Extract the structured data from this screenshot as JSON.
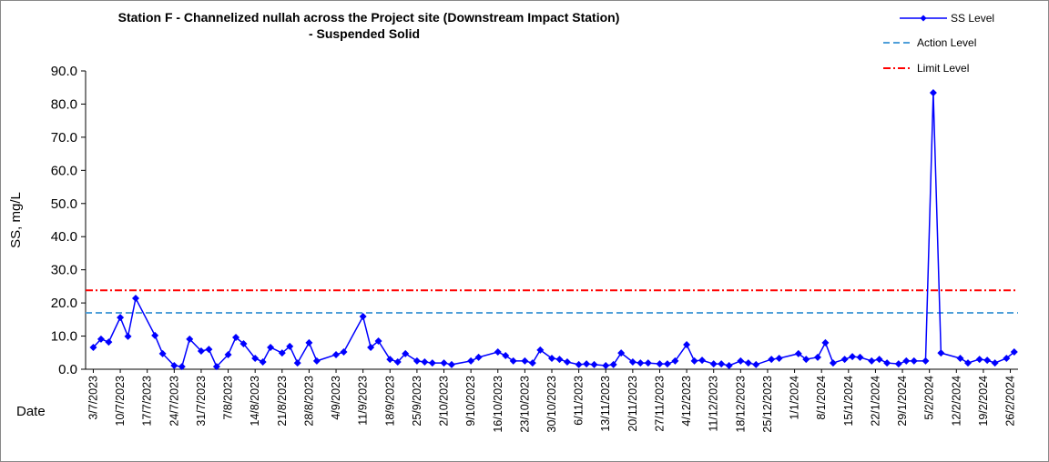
{
  "chart_data": {
    "type": "line",
    "title": [
      "Station F - Channelized nullah across the Project site (Downstream Impact Station)",
      "- Suspended Solid"
    ],
    "y_label": "SS, mg/L",
    "x_label": "Date",
    "x": [
      "3/7/2023",
      "5/7/2023",
      "7/7/2023",
      "10/7/2023",
      "12/7/2023",
      "14/7/2023",
      "19/7/2023",
      "21/7/2023",
      "24/7/2023",
      "26/7/2023",
      "28/7/2023",
      "31/7/2023",
      "2/8/2023",
      "4/8/2023",
      "7/8/2023",
      "9/8/2023",
      "11/8/2023",
      "14/8/2023",
      "16/8/2023",
      "18/8/2023",
      "21/8/2023",
      "23/8/2023",
      "25/8/2023",
      "28/8/2023",
      "30/8/2023",
      "4/9/2023",
      "6/9/2023",
      "11/9/2023",
      "13/9/2023",
      "15/9/2023",
      "18/9/2023",
      "20/9/2023",
      "22/9/2023",
      "25/9/2023",
      "27/9/2023",
      "29/9/2023",
      "2/10/2023",
      "4/10/2023",
      "9/10/2023",
      "11/10/2023",
      "16/10/2023",
      "18/10/2023",
      "20/10/2023",
      "23/10/2023",
      "25/10/2023",
      "27/10/2023",
      "30/10/2023",
      "1/11/2023",
      "3/11/2023",
      "6/11/2023",
      "8/11/2023",
      "10/11/2023",
      "13/11/2023",
      "15/11/2023",
      "17/11/2023",
      "20/11/2023",
      "22/11/2023",
      "24/11/2023",
      "27/11/2023",
      "29/11/2023",
      "1/12/2023",
      "4/12/2023",
      "6/12/2023",
      "8/12/2023",
      "11/12/2023",
      "13/12/2023",
      "15/12/2023",
      "18/12/2023",
      "20/12/2023",
      "22/12/2023",
      "26/12/2023",
      "28/12/2023",
      "2/1/2024",
      "4/1/2024",
      "7/1/2024",
      "9/1/2024",
      "11/1/2024",
      "14/1/2024",
      "16/1/2024",
      "18/1/2024",
      "21/1/2024",
      "23/1/2024",
      "25/1/2024",
      "28/1/2024",
      "30/1/2024",
      "1/2/2024",
      "4/2/2024",
      "6/2/2024",
      "8/2/2024",
      "13/2/2024",
      "15/2/2024",
      "18/2/2024",
      "20/2/2024",
      "22/2/2024",
      "25/2/2024",
      "27/2/2024"
    ],
    "series": [
      {
        "name": "SS Level",
        "color": "#0000ff",
        "marker": "diamond",
        "values": [
          6.6,
          9.1,
          8.2,
          15.6,
          9.9,
          21.4,
          10.2,
          4.7,
          1.1,
          0.8,
          9.1,
          5.5,
          6.0,
          0.8,
          4.4,
          9.6,
          7.7,
          3.3,
          2.2,
          6.6,
          4.9,
          6.9,
          1.9,
          8.0,
          2.5,
          4.4,
          5.2,
          15.9,
          6.6,
          8.5,
          3.0,
          2.2,
          4.7,
          2.5,
          2.2,
          1.9,
          1.9,
          1.4,
          2.5,
          3.6,
          5.2,
          4.1,
          2.5,
          2.5,
          1.9,
          5.8,
          3.3,
          3.0,
          2.2,
          1.4,
          1.6,
          1.4,
          1.1,
          1.4,
          4.9,
          2.2,
          1.9,
          1.9,
          1.6,
          1.6,
          2.5,
          7.4,
          2.5,
          2.7,
          1.6,
          1.6,
          1.1,
          2.5,
          1.9,
          1.4,
          3.0,
          3.3,
          4.7,
          3.0,
          3.6,
          8.0,
          1.9,
          3.0,
          3.8,
          3.6,
          2.5,
          3.0,
          1.9,
          1.6,
          2.5,
          2.5,
          2.5,
          83.4,
          4.9,
          3.3,
          1.9,
          3.0,
          2.7,
          1.9,
          3.3,
          5.2
        ]
      }
    ],
    "reference_lines": [
      {
        "name": "Action Level",
        "color": "#4f9fd9",
        "value": 17.0,
        "style": "dashed"
      },
      {
        "name": "Limit Level",
        "color": "#ff0000",
        "value": 23.8,
        "style": "dashdot"
      }
    ],
    "xlim": [
      "1/7/2023",
      "28/2/2024"
    ],
    "xticks": [
      "3/7/2023",
      "10/7/2023",
      "17/7/2023",
      "24/7/2023",
      "31/7/2023",
      "7/8/2023",
      "14/8/2023",
      "21/8/2023",
      "28/8/2023",
      "4/9/2023",
      "11/9/2023",
      "18/9/2023",
      "25/9/2023",
      "2/10/2023",
      "9/10/2023",
      "16/10/2023",
      "23/10/2023",
      "30/10/2023",
      "6/11/2023",
      "13/11/2023",
      "20/11/2023",
      "27/11/2023",
      "4/12/2023",
      "11/12/2023",
      "18/12/2023",
      "25/12/2023",
      "1/1/2024",
      "8/1/2024",
      "15/1/2024",
      "22/1/2024",
      "29/1/2024",
      "5/2/2024",
      "12/2/2024",
      "19/2/2024",
      "26/2/2024"
    ],
    "ylim": [
      0,
      90
    ],
    "yticks": [
      {
        "value": 0,
        "label": "0.0"
      },
      {
        "value": 10,
        "label": "10.0"
      },
      {
        "value": 20,
        "label": "20.0"
      },
      {
        "value": 30,
        "label": "30.0"
      },
      {
        "value": 40,
        "label": "40.0"
      },
      {
        "value": 50,
        "label": "50.0"
      },
      {
        "value": 60,
        "label": "60.0"
      },
      {
        "value": 70,
        "label": "70.0"
      },
      {
        "value": 80,
        "label": "80.0"
      },
      {
        "value": 90,
        "label": "90.0"
      }
    ],
    "legend": "upper right"
  }
}
